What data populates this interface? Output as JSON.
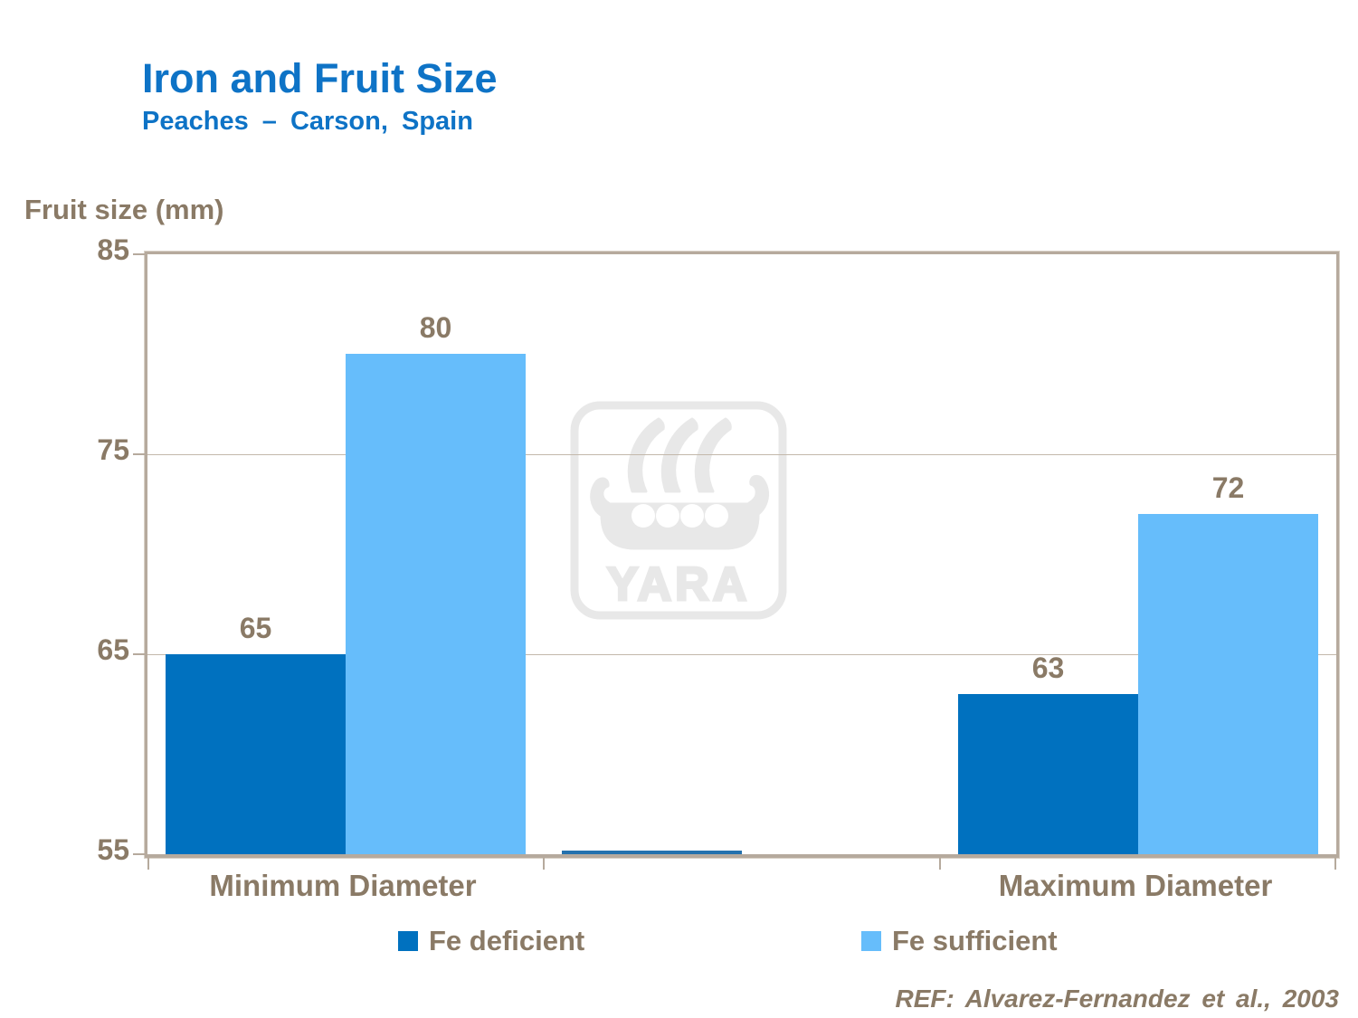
{
  "title": "Iron and Fruit Size",
  "subtitle": "Peaches – Carson, Spain",
  "y_axis_title": "Fruit size (mm)",
  "reference": "REF: Alvarez-Fernandez et al., 2003",
  "watermark_text": "YARA",
  "colors": {
    "title_blue": "#0e73c6",
    "fe_deficient": "#0071bf",
    "fe_sufficient": "#66bdfb",
    "text_brown": "#8a7a66",
    "axis_frame": "#b6aa9d",
    "gridline": "#c3b8ab",
    "watermark_gray": "#e8e8e8",
    "baseline_sliver_blue": "#2471ad"
  },
  "chart_data": {
    "type": "bar",
    "title": "Iron and Fruit Size",
    "subtitle": "Peaches – Carson, Spain",
    "xlabel": "",
    "ylabel": "Fruit size (mm)",
    "ylim": [
      55,
      85
    ],
    "yticks": [
      85,
      75,
      65,
      55
    ],
    "grid": "horizontal gridlines at 65 and 75",
    "legend_position": "bottom",
    "categories": [
      "Minimum Diameter",
      "Maximum Diameter"
    ],
    "series": [
      {
        "name": "Fe deficient",
        "color": "#0071bf",
        "values": [
          65,
          63
        ]
      },
      {
        "name": "Fe sufficient",
        "color": "#66bdfb",
        "values": [
          80,
          72
        ]
      }
    ],
    "data_labels_shown": true,
    "middle_gap_sliver": {
      "series": "Fe deficient",
      "approx_value": 55.2
    }
  },
  "legend": [
    {
      "label": "Fe deficient"
    },
    {
      "label": "Fe sufficient"
    }
  ]
}
